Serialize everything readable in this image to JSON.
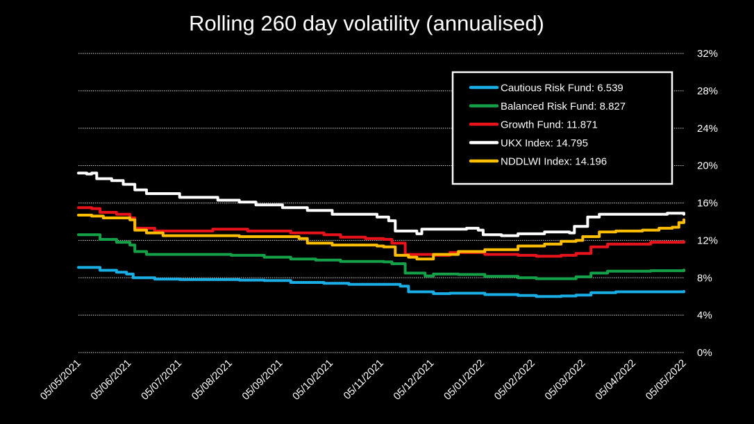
{
  "chart_data": {
    "type": "line",
    "title": "Rolling 260 day volatility (annualised)",
    "xlabel": "",
    "ylabel": "",
    "x_start": "2021-05-05",
    "x_end": "2022-05-05",
    "x_ticks": [
      "05/05/2021",
      "05/06/2021",
      "05/07/2021",
      "05/08/2021",
      "05/09/2021",
      "05/10/2021",
      "05/11/2021",
      "05/12/2021",
      "05/01/2022",
      "05/02/2022",
      "05/03/2022",
      "05/04/2022",
      "05/05/2022"
    ],
    "y_ticks": [
      "0%",
      "4%",
      "8%",
      "12%",
      "16%",
      "20%",
      "24%",
      "28%",
      "32%"
    ],
    "ylim": [
      0,
      32
    ],
    "y_axis_position": "right",
    "grid": "horizontal dotted",
    "legend_position": "top-right",
    "series": [
      {
        "name": "Cautious Risk Fund: 6.539",
        "color": "#1aaee6",
        "points": [
          [
            "2021-05-05",
            9.1
          ],
          [
            "2021-05-13",
            9.1
          ],
          [
            "2021-05-18",
            8.8
          ],
          [
            "2021-05-28",
            8.6
          ],
          [
            "2021-06-03",
            8.4
          ],
          [
            "2021-06-07",
            8.0
          ],
          [
            "2021-06-20",
            7.85
          ],
          [
            "2021-07-05",
            7.8
          ],
          [
            "2021-07-25",
            7.8
          ],
          [
            "2021-08-10",
            7.75
          ],
          [
            "2021-08-25",
            7.7
          ],
          [
            "2021-09-10",
            7.5
          ],
          [
            "2021-09-30",
            7.4
          ],
          [
            "2021-10-15",
            7.3
          ],
          [
            "2021-11-05",
            7.3
          ],
          [
            "2021-11-15",
            7.1
          ],
          [
            "2021-11-20",
            6.5
          ],
          [
            "2021-12-05",
            6.3
          ],
          [
            "2021-12-15",
            6.35
          ],
          [
            "2022-01-05",
            6.2
          ],
          [
            "2022-01-25",
            6.1
          ],
          [
            "2022-02-05",
            6.0
          ],
          [
            "2022-02-20",
            6.05
          ],
          [
            "2022-03-01",
            6.15
          ],
          [
            "2022-03-10",
            6.4
          ],
          [
            "2022-03-25",
            6.5
          ],
          [
            "2022-04-15",
            6.5
          ],
          [
            "2022-05-05",
            6.54
          ]
        ]
      },
      {
        "name": "Balanced Risk Fund: 8.827",
        "color": "#14a147",
        "points": [
          [
            "2021-05-05",
            12.6
          ],
          [
            "2021-05-13",
            12.6
          ],
          [
            "2021-05-18",
            12.1
          ],
          [
            "2021-05-28",
            11.8
          ],
          [
            "2021-06-05",
            11.5
          ],
          [
            "2021-06-08",
            10.8
          ],
          [
            "2021-06-15",
            10.5
          ],
          [
            "2021-07-20",
            10.5
          ],
          [
            "2021-08-05",
            10.4
          ],
          [
            "2021-08-25",
            10.2
          ],
          [
            "2021-09-10",
            10.0
          ],
          [
            "2021-09-25",
            9.9
          ],
          [
            "2021-10-10",
            9.75
          ],
          [
            "2021-11-05",
            9.7
          ],
          [
            "2021-11-10",
            9.5
          ],
          [
            "2021-11-18",
            8.5
          ],
          [
            "2021-11-30",
            8.2
          ],
          [
            "2021-12-05",
            8.4
          ],
          [
            "2021-12-20",
            8.35
          ],
          [
            "2022-01-05",
            8.15
          ],
          [
            "2022-01-25",
            8.0
          ],
          [
            "2022-02-05",
            7.9
          ],
          [
            "2022-02-20",
            7.9
          ],
          [
            "2022-03-01",
            8.1
          ],
          [
            "2022-03-10",
            8.5
          ],
          [
            "2022-03-20",
            8.7
          ],
          [
            "2022-04-15",
            8.75
          ],
          [
            "2022-05-05",
            8.83
          ]
        ]
      },
      {
        "name": "Growth Fund: 11.871",
        "color": "#e8131b",
        "points": [
          [
            "2021-05-05",
            15.5
          ],
          [
            "2021-05-13",
            15.4
          ],
          [
            "2021-05-18",
            15.0
          ],
          [
            "2021-05-28",
            14.8
          ],
          [
            "2021-06-05",
            14.4
          ],
          [
            "2021-06-08",
            13.3
          ],
          [
            "2021-06-20",
            13.0
          ],
          [
            "2021-07-20",
            13.0
          ],
          [
            "2021-07-25",
            13.2
          ],
          [
            "2021-08-15",
            13.0
          ],
          [
            "2021-09-10",
            12.8
          ],
          [
            "2021-09-30",
            12.6
          ],
          [
            "2021-10-10",
            12.35
          ],
          [
            "2021-10-25",
            12.2
          ],
          [
            "2021-11-05",
            12.1
          ],
          [
            "2021-11-10",
            11.7
          ],
          [
            "2021-11-18",
            10.5
          ],
          [
            "2021-12-05",
            10.4
          ],
          [
            "2021-12-15",
            10.7
          ],
          [
            "2022-01-05",
            10.5
          ],
          [
            "2022-01-25",
            10.4
          ],
          [
            "2022-02-05",
            10.3
          ],
          [
            "2022-02-20",
            10.4
          ],
          [
            "2022-03-01",
            10.6
          ],
          [
            "2022-03-10",
            11.3
          ],
          [
            "2022-03-20",
            11.6
          ],
          [
            "2022-04-15",
            11.8
          ],
          [
            "2022-05-05",
            11.87
          ]
        ]
      },
      {
        "name": "UKX Index: 14.795",
        "color": "#ffffff",
        "points": [
          [
            "2021-05-05",
            19.2
          ],
          [
            "2021-05-10",
            19.1
          ],
          [
            "2021-05-13",
            19.2
          ],
          [
            "2021-05-16",
            18.6
          ],
          [
            "2021-05-25",
            18.4
          ],
          [
            "2021-06-01",
            18.0
          ],
          [
            "2021-06-08",
            17.4
          ],
          [
            "2021-06-15",
            17.0
          ],
          [
            "2021-07-05",
            16.6
          ],
          [
            "2021-07-25",
            16.6
          ],
          [
            "2021-07-28",
            16.3
          ],
          [
            "2021-08-10",
            16.1
          ],
          [
            "2021-08-20",
            15.8
          ],
          [
            "2021-09-05",
            15.5
          ],
          [
            "2021-09-20",
            15.2
          ],
          [
            "2021-10-05",
            14.8
          ],
          [
            "2021-10-20",
            14.8
          ],
          [
            "2021-11-01",
            14.5
          ],
          [
            "2021-11-08",
            14.1
          ],
          [
            "2021-11-12",
            13.0
          ],
          [
            "2021-11-25",
            12.7
          ],
          [
            "2021-11-28",
            13.2
          ],
          [
            "2021-12-10",
            13.2
          ],
          [
            "2021-12-25",
            13.3
          ],
          [
            "2022-01-01",
            13.1
          ],
          [
            "2022-01-04",
            12.6
          ],
          [
            "2022-01-15",
            12.5
          ],
          [
            "2022-01-25",
            12.7
          ],
          [
            "2022-02-10",
            12.9
          ],
          [
            "2022-02-25",
            12.8
          ],
          [
            "2022-02-28",
            13.5
          ],
          [
            "2022-03-08",
            14.5
          ],
          [
            "2022-03-15",
            14.8
          ],
          [
            "2022-04-05",
            14.8
          ],
          [
            "2022-04-25",
            14.9
          ],
          [
            "2022-05-05",
            14.8
          ]
        ]
      },
      {
        "name": "NDDLWI Index: 14.196",
        "color": "#ffbf00",
        "points": [
          [
            "2021-05-05",
            14.7
          ],
          [
            "2021-05-13",
            14.6
          ],
          [
            "2021-05-20",
            14.4
          ],
          [
            "2021-06-05",
            14.2
          ],
          [
            "2021-06-08",
            13.1
          ],
          [
            "2021-06-15",
            12.8
          ],
          [
            "2021-06-25",
            12.5
          ],
          [
            "2021-07-20",
            12.5
          ],
          [
            "2021-08-10",
            12.4
          ],
          [
            "2021-09-05",
            12.4
          ],
          [
            "2021-09-15",
            12.2
          ],
          [
            "2021-09-20",
            11.7
          ],
          [
            "2021-10-05",
            11.5
          ],
          [
            "2021-10-20",
            11.5
          ],
          [
            "2021-11-01",
            11.4
          ],
          [
            "2021-11-05",
            11.3
          ],
          [
            "2021-11-12",
            10.4
          ],
          [
            "2021-11-20",
            10.2
          ],
          [
            "2021-11-25",
            10.0
          ],
          [
            "2021-12-05",
            10.5
          ],
          [
            "2021-12-20",
            10.8
          ],
          [
            "2022-01-05",
            11.0
          ],
          [
            "2022-01-15",
            11.0
          ],
          [
            "2022-01-25",
            11.4
          ],
          [
            "2022-02-10",
            11.6
          ],
          [
            "2022-02-20",
            11.9
          ],
          [
            "2022-03-01",
            12.0
          ],
          [
            "2022-03-05",
            12.4
          ],
          [
            "2022-03-15",
            12.9
          ],
          [
            "2022-03-25",
            13.0
          ],
          [
            "2022-04-10",
            13.1
          ],
          [
            "2022-04-20",
            13.3
          ],
          [
            "2022-04-28",
            13.4
          ],
          [
            "2022-05-02",
            13.9
          ],
          [
            "2022-05-05",
            14.2
          ]
        ]
      }
    ]
  }
}
